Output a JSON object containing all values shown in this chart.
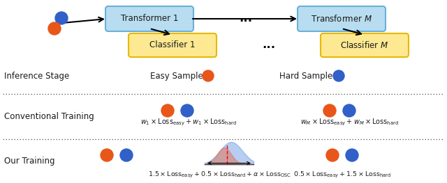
{
  "bg_color": "#ffffff",
  "transformer_box_color": "#b8ddf0",
  "transformer_box_edge": "#6ab0d8",
  "classifier_box_color": "#fde992",
  "classifier_box_edge": "#e8b800",
  "orange_color": "#e8561a",
  "blue_color": "#3060c8",
  "text_color": "#1a1a1a",
  "dotted_line_color": "#666666",
  "transformer1_text": "Transformer 1",
  "transformerM_text": "Transformer $M$",
  "classifier1_text": "Classifier 1",
  "classifierM_text": "Classifier $M$",
  "inference_label": "Inference Stage",
  "easy_sample_label": "Easy Sample",
  "hard_sample_label": "Hard Sample",
  "conv_training_label": "Conventional Training",
  "our_training_label": "Our Training",
  "conv_formula_left": "$w_1\\times\\mathrm{Loss}_{\\mathrm{easy}} + w_1\\times\\mathrm{Loss}_{\\mathrm{hard}}$",
  "conv_formula_right": "$w_M\\times\\mathrm{Loss}_{\\mathrm{easy}} + w_M\\times\\mathrm{Loss}_{\\mathrm{hard}}$",
  "our_formula_left": "$1.5\\times\\mathrm{Loss}_{\\mathrm{easy}} + 0.5\\times\\mathrm{Loss}_{\\mathrm{hard}} + \\alpha\\times\\mathrm{Loss}_{\\mathrm{OSC}}$",
  "our_formula_right": "$0.5\\times\\mathrm{Loss}_{\\mathrm{easy}} + 1.5\\times\\mathrm{Loss}_{\\mathrm{hard}}$"
}
